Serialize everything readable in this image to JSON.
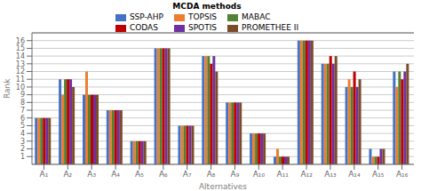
{
  "chart_data": {
    "type": "bar",
    "legend_title": "MCDA methods",
    "xlabel": "Alternatives",
    "ylabel": "Rank",
    "categories": [
      "A₁",
      "A₂",
      "A₃",
      "A₄",
      "A₅",
      "A₆",
      "A₇",
      "A₈",
      "A₉",
      "A₁₀",
      "A₁₁",
      "A₁₂",
      "A₁₃",
      "A₁₄",
      "A₁₅",
      "A₁₆"
    ],
    "series": [
      {
        "name": "SSP-AHP",
        "color": "#4472c4",
        "values": [
          6,
          11,
          9,
          7,
          3,
          15,
          5,
          14,
          8,
          4,
          1,
          16,
          13,
          10,
          2,
          12
        ]
      },
      {
        "name": "TOPSIS",
        "color": "#ed7d31",
        "values": [
          6,
          9,
          12,
          7,
          3,
          15,
          5,
          14,
          8,
          4,
          2,
          16,
          13,
          11,
          1,
          10
        ]
      },
      {
        "name": "MABAC",
        "color": "#548235",
        "values": [
          6,
          11,
          9,
          7,
          3,
          15,
          5,
          14,
          8,
          4,
          1,
          16,
          13,
          10,
          1,
          12
        ]
      },
      {
        "name": "CODAS",
        "color": "#c00000",
        "values": [
          6,
          11,
          9,
          7,
          3,
          15,
          5,
          13,
          8,
          4,
          1,
          16,
          14,
          12,
          1,
          11
        ]
      },
      {
        "name": "SPOTIS",
        "color": "#7030a0",
        "values": [
          6,
          11,
          9,
          7,
          3,
          15,
          5,
          14,
          8,
          4,
          1,
          16,
          13,
          10,
          2,
          12
        ]
      },
      {
        "name": "PROMETHEE II",
        "color": "#7b4c2a",
        "values": [
          6,
          10,
          9,
          7,
          3,
          15,
          5,
          12,
          8,
          4,
          1,
          16,
          14,
          11,
          2,
          13
        ]
      }
    ],
    "ylim": [
      0,
      17
    ],
    "yticks": [
      1,
      2,
      3,
      4,
      5,
      6,
      7,
      8,
      9,
      10,
      11,
      12,
      13,
      14,
      15,
      16
    ],
    "grid": true,
    "legend": "top"
  }
}
